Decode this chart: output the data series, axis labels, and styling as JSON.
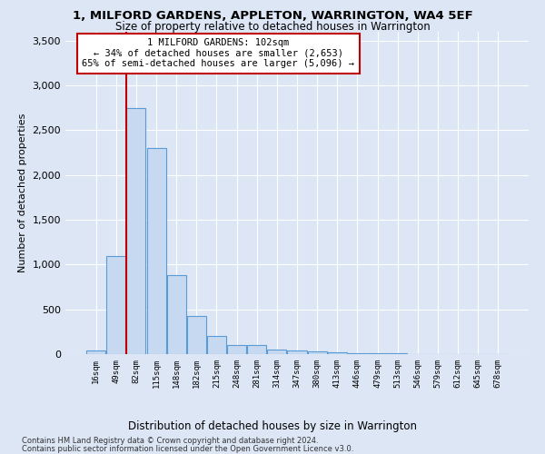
{
  "title1": "1, MILFORD GARDENS, APPLETON, WARRINGTON, WA4 5EF",
  "title2": "Size of property relative to detached houses in Warrington",
  "xlabel": "Distribution of detached houses by size in Warrington",
  "ylabel": "Number of detached properties",
  "bin_labels": [
    "16sqm",
    "49sqm",
    "82sqm",
    "115sqm",
    "148sqm",
    "182sqm",
    "215sqm",
    "248sqm",
    "281sqm",
    "314sqm",
    "347sqm",
    "380sqm",
    "413sqm",
    "446sqm",
    "479sqm",
    "513sqm",
    "546sqm",
    "579sqm",
    "612sqm",
    "645sqm",
    "678sqm"
  ],
  "bar_heights": [
    40,
    1100,
    2750,
    2300,
    880,
    430,
    200,
    100,
    100,
    55,
    40,
    30,
    20,
    15,
    10,
    7,
    5,
    4,
    3,
    2,
    2
  ],
  "bar_color": "#c6d9f0",
  "bar_edge_color": "#5b9bd5",
  "vline_x_index": 2,
  "vline_color": "#c00000",
  "annotation_text": "1 MILFORD GARDENS: 102sqm\n← 34% of detached houses are smaller (2,653)\n65% of semi-detached houses are larger (5,096) →",
  "annotation_box_color": "#ffffff",
  "annotation_box_edge": "#c00000",
  "ylim": [
    0,
    3600
  ],
  "yticks": [
    0,
    500,
    1000,
    1500,
    2000,
    2500,
    3000,
    3500
  ],
  "footer1": "Contains HM Land Registry data © Crown copyright and database right 2024.",
  "footer2": "Contains public sector information licensed under the Open Government Licence v3.0.",
  "bg_color": "#dce6f5",
  "plot_bg_color": "#dce6f5",
  "grid_color": "#ffffff",
  "title1_fontsize": 9.5,
  "title2_fontsize": 8.5
}
